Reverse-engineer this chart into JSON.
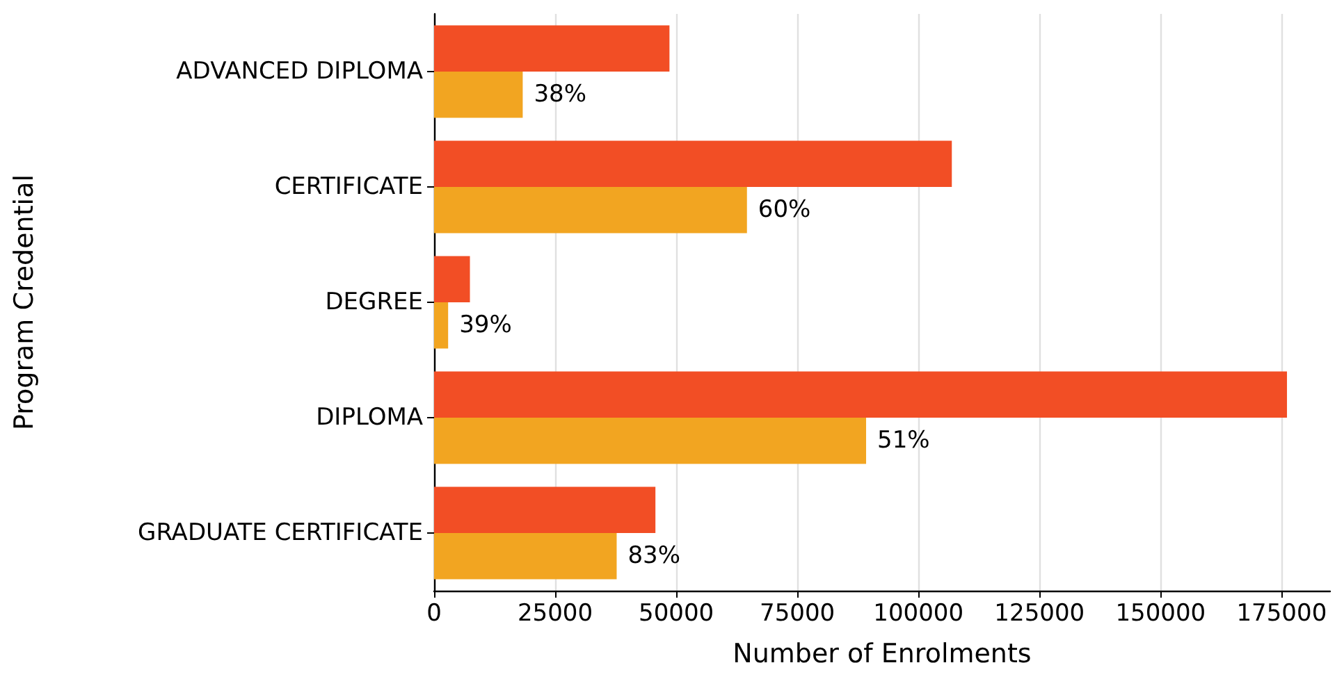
{
  "chart_data": {
    "type": "bar",
    "orientation": "horizontal",
    "xlabel": "Number of Enrolments",
    "ylabel": "Program Credential",
    "categories": [
      "ADVANCED DIPLOMA",
      "CERTIFICATE",
      "DEGREE",
      "DIPLOMA",
      "GRADUATE CERTIFICATE"
    ],
    "series": [
      {
        "color": "#f24e25",
        "values": [
          48600,
          106900,
          7400,
          176100,
          45700
        ]
      },
      {
        "color": "#f2a521",
        "values": [
          18300,
          64600,
          2900,
          89200,
          37700
        ]
      }
    ],
    "annotations": [
      {
        "text": "38%",
        "x": 18300,
        "y": "ADVANCED DIPLOMA"
      },
      {
        "text": "60%",
        "x": 64600,
        "y": "CERTIFICATE"
      },
      {
        "text": "39%",
        "x": 2900,
        "y": "DEGREE"
      },
      {
        "text": "51%",
        "x": 89200,
        "y": "DIPLOMA"
      },
      {
        "text": "83%",
        "x": 37700,
        "y": "GRADUATE CERTIFICATE"
      }
    ],
    "xlim": [
      0,
      185000
    ],
    "xticks": [
      0,
      25000,
      50000,
      75000,
      100000,
      125000,
      150000,
      175000
    ],
    "grid": "x"
  }
}
